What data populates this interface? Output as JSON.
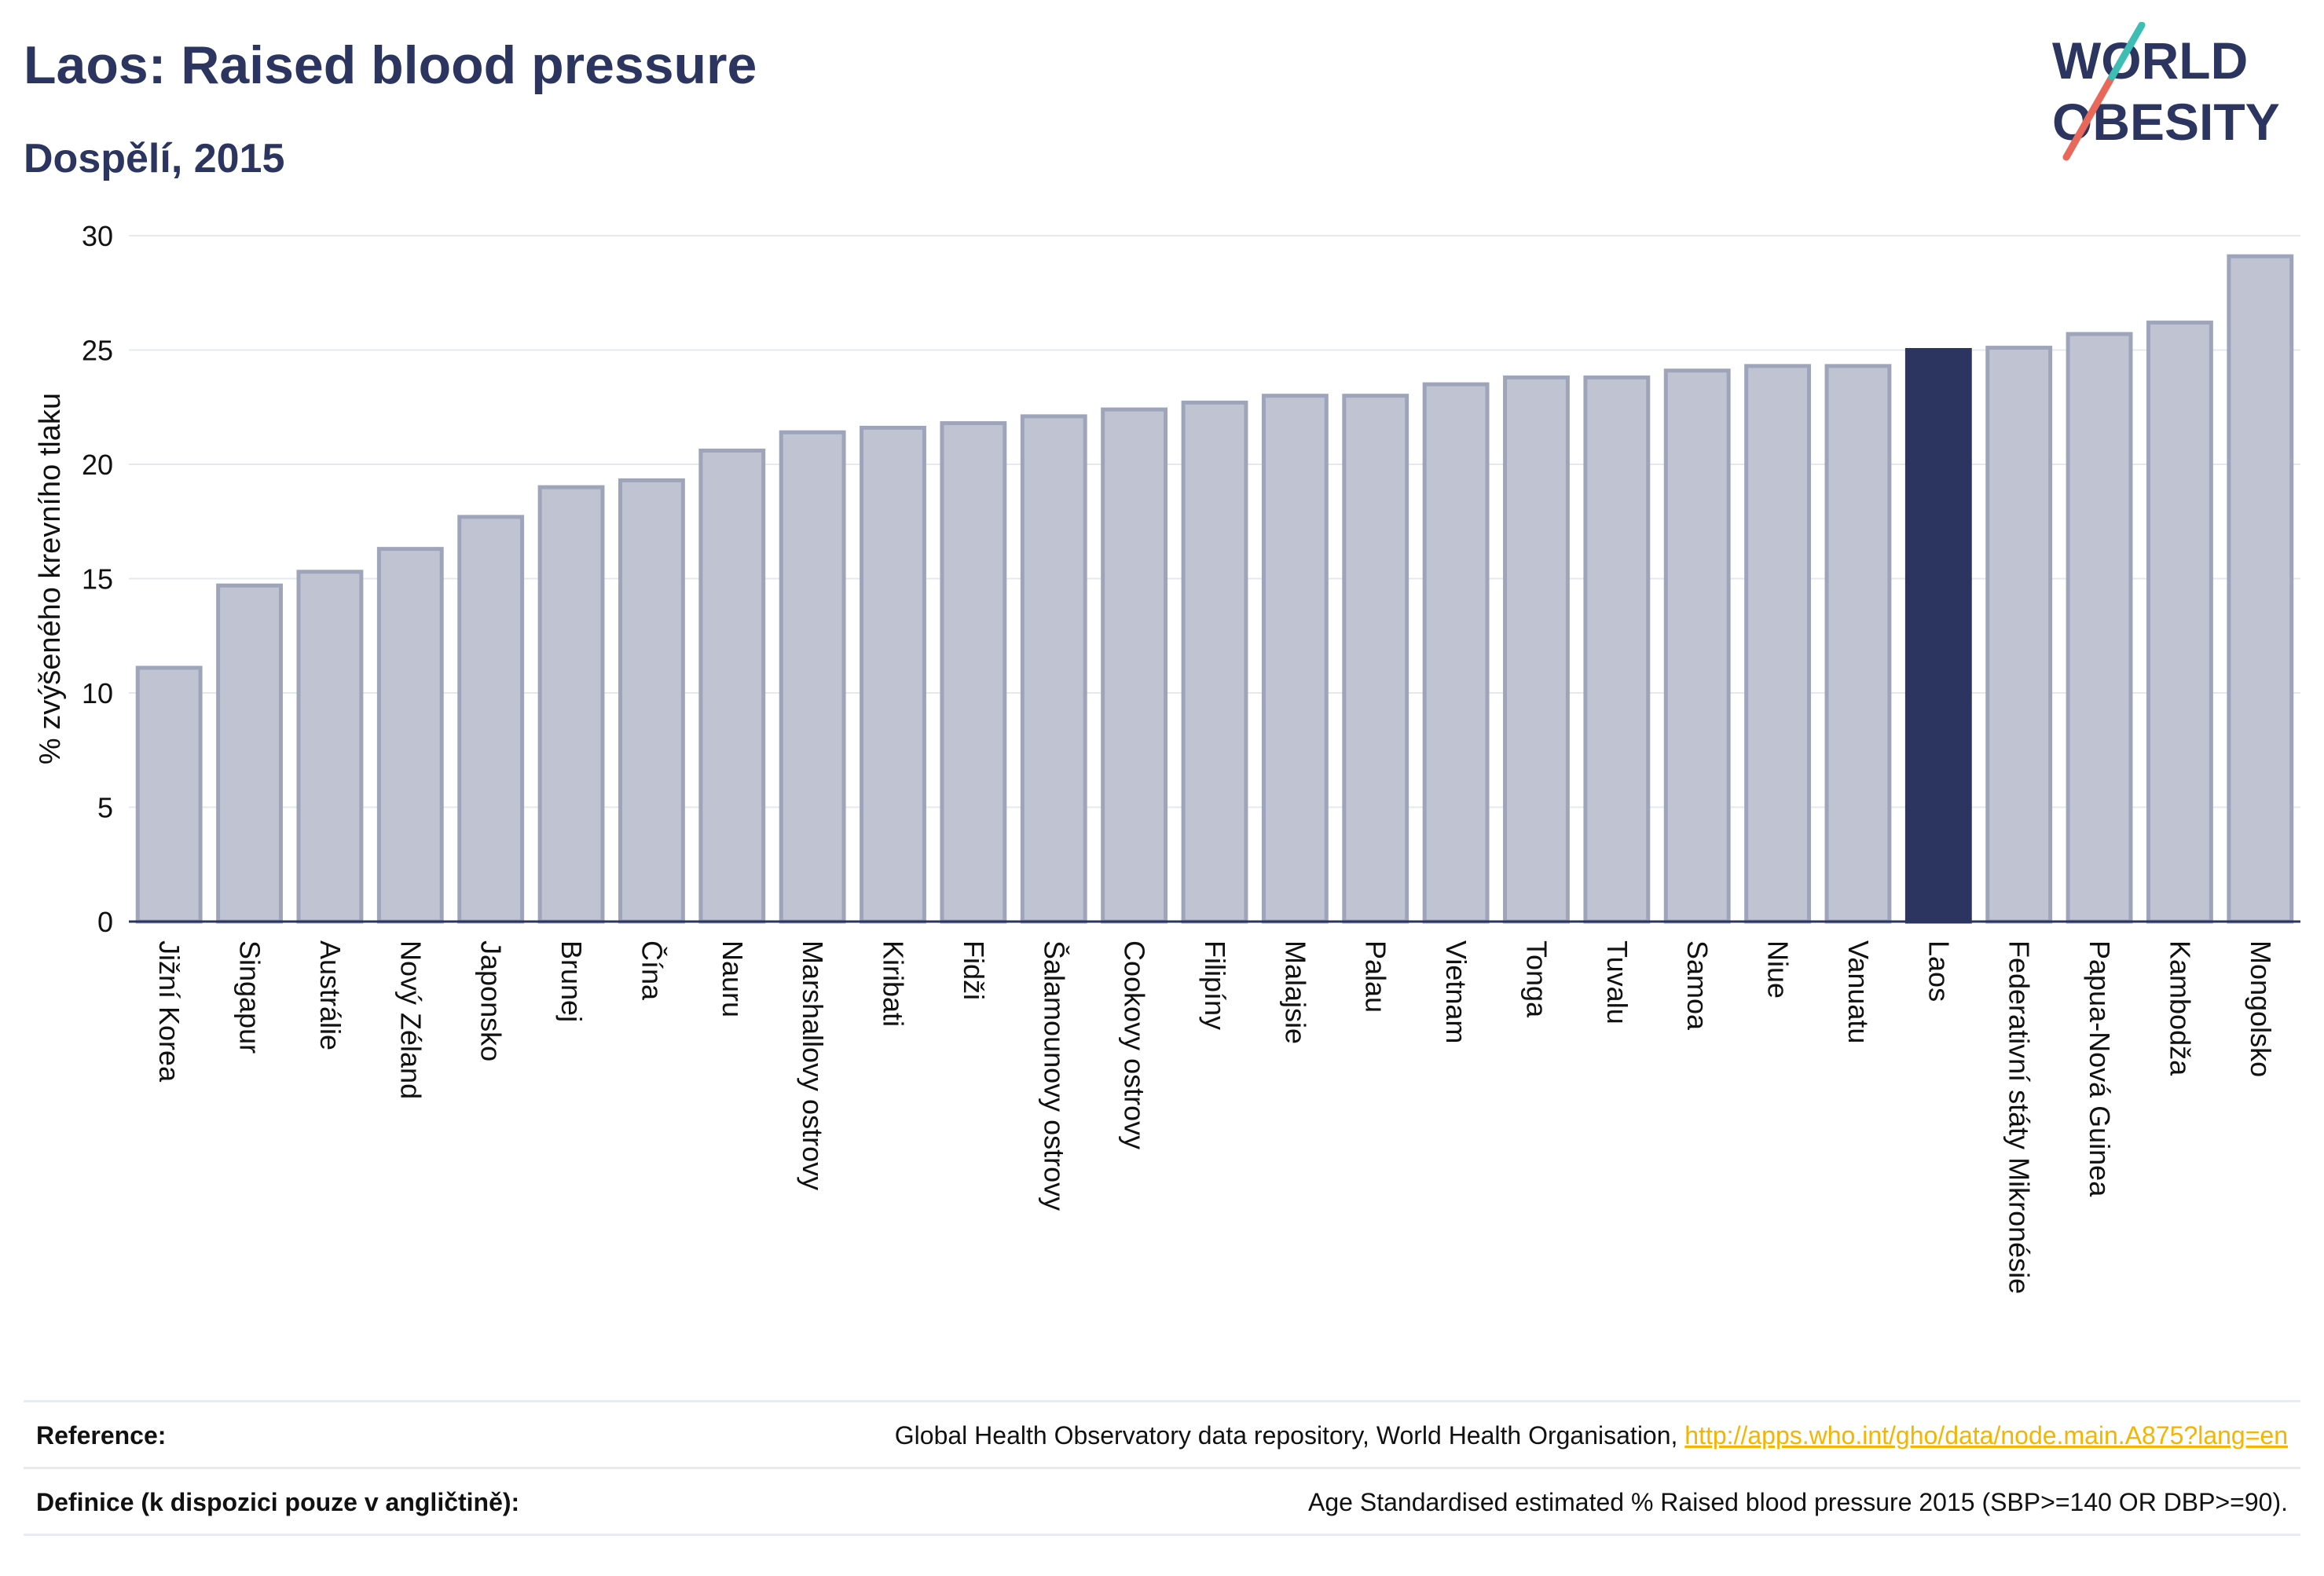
{
  "header": {
    "title": "Laos: Raised blood pressure",
    "subtitle": "Dospělí, 2015"
  },
  "logo": {
    "line1": "WORLD",
    "line2": "OBESITY",
    "accent_colors": [
      "#3dbdb4",
      "#e8695a"
    ]
  },
  "chart_data": {
    "type": "bar",
    "ylabel": "% zvýšeného krevního tlaku",
    "xlabel": "",
    "ylim": [
      0,
      30
    ],
    "yticks": [
      0,
      5,
      10,
      15,
      20,
      25,
      30
    ],
    "grid": true,
    "highlight": "Laos",
    "colors": {
      "bar": "#c0c4d2",
      "bar_edge": "#9ea4ba",
      "highlight": "#2b3560",
      "axis": "#2b3560",
      "grid": "#e6e8ee"
    },
    "categories": [
      "Jižní Korea",
      "Singapur",
      "Austrálie",
      "Nový Zéland",
      "Japonsko",
      "Brunej",
      "Čína",
      "Nauru",
      "Marshallovy ostrovy",
      "Kiribati",
      "Fidži",
      "Šalamounovy ostrovy",
      "Cookovy ostrovy",
      "Filipíny",
      "Malajsie",
      "Palau",
      "Vietnam",
      "Tonga",
      "Tuvalu",
      "Samoa",
      "Niue",
      "Vanuatu",
      "Laos",
      "Federativní státy Mikronésie",
      "Papua-Nová Guinea",
      "Kambodža",
      "Mongolsko"
    ],
    "values": [
      11.1,
      14.7,
      15.3,
      16.3,
      17.7,
      19.0,
      19.3,
      20.6,
      21.4,
      21.6,
      21.8,
      22.1,
      22.4,
      22.7,
      23.0,
      23.0,
      23.5,
      23.8,
      23.8,
      24.1,
      24.3,
      24.3,
      25.0,
      25.1,
      25.7,
      26.2,
      29.1
    ]
  },
  "references": {
    "reference_label": "Reference:",
    "reference_text": "Global Health Observatory data repository, World Health Organisation, ",
    "reference_link": "http://apps.who.int/gho/data/node.main.A875?lang=en",
    "definition_label": "Definice (k dispozici pouze v angličtině):",
    "definition_text": "Age Standardised estimated % Raised blood pressure 2015 (SBP>=140 OR DBP>=90)."
  }
}
